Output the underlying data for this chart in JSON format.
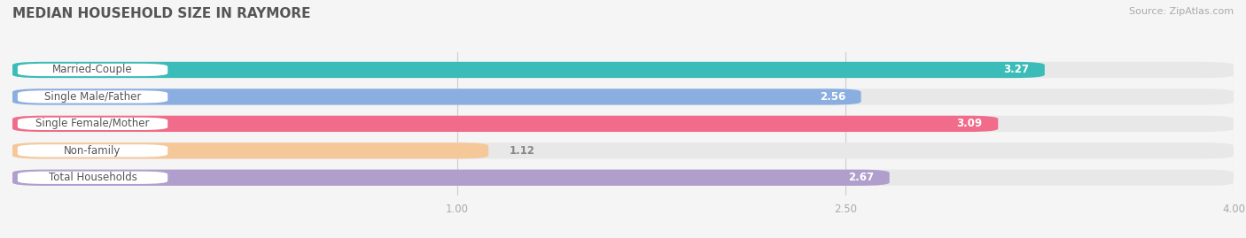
{
  "title": "MEDIAN HOUSEHOLD SIZE IN RAYMORE",
  "source": "Source: ZipAtlas.com",
  "categories": [
    "Married-Couple",
    "Single Male/Father",
    "Single Female/Mother",
    "Non-family",
    "Total Households"
  ],
  "values": [
    3.27,
    2.56,
    3.09,
    1.12,
    2.67
  ],
  "bar_colors": [
    "#3bbcb8",
    "#8aaee0",
    "#f06c8a",
    "#f5c89a",
    "#b09fcc"
  ],
  "value_label_inside_color": "white",
  "value_label_outside_color": "#888888",
  "xlim_data": [
    0,
    4.0
  ],
  "xlim_display": [
    -0.72,
    4.0
  ],
  "xticks": [
    1.0,
    2.5,
    4.0
  ],
  "background_color": "#f5f5f5",
  "bar_bg_color": "#e8e8e8",
  "bar_height": 0.6,
  "title_fontsize": 11,
  "label_fontsize": 8.5,
  "value_fontsize": 8.5,
  "label_pill_color": "white",
  "label_text_color": "#555555",
  "inside_value_threshold": 1.8
}
